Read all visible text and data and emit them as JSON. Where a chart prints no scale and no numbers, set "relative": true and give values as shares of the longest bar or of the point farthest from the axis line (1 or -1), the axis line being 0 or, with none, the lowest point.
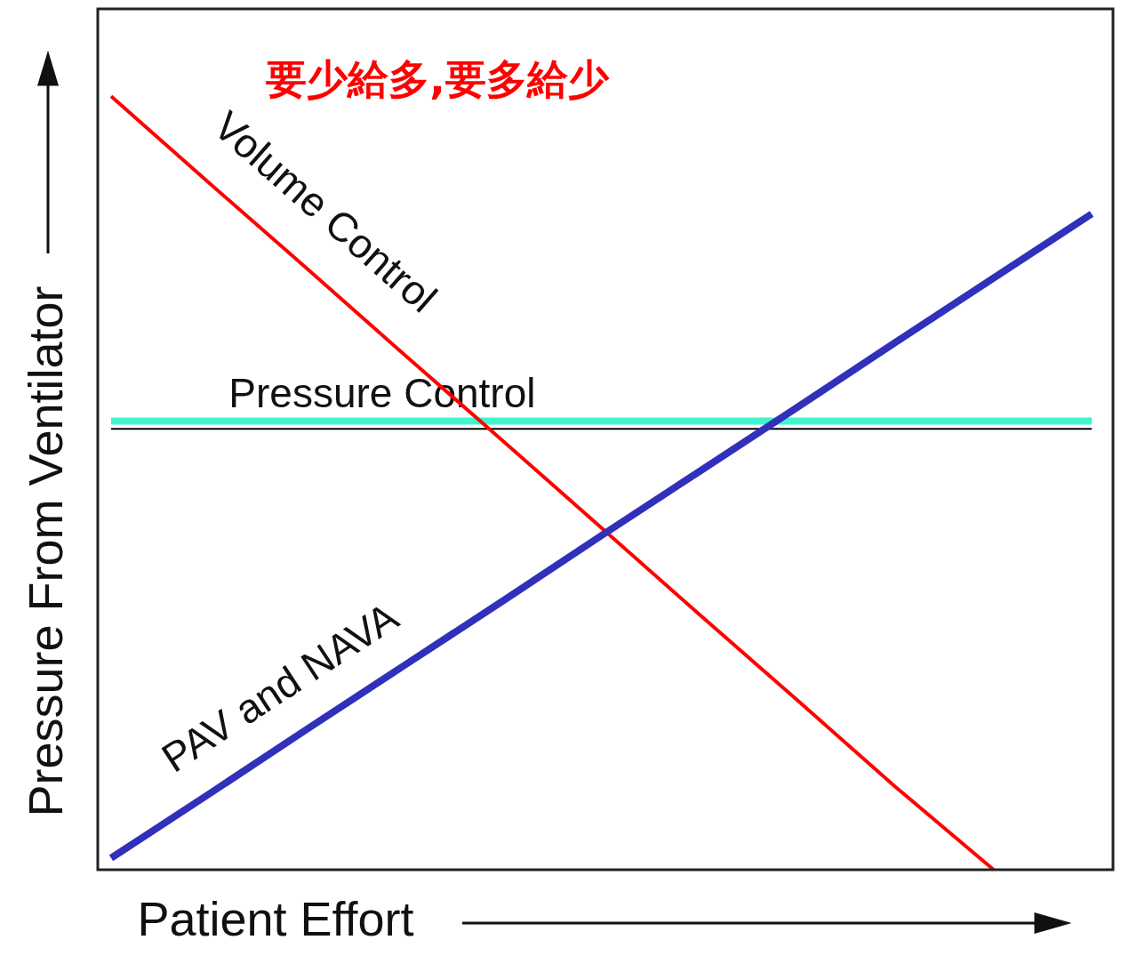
{
  "chart_data": {
    "type": "line",
    "relative": true,
    "title": "要少給多,要多給少",
    "xlabel": "Patient Effort",
    "ylabel": "Pressure From Ventilator",
    "line_style": "solid",
    "categories": [
      null,
      null,
      null,
      null,
      null,
      null,
      null,
      null,
      null,
      null,
      null
    ],
    "series": [
      {
        "color": "#000000",
        "values": [
          0.57,
          0.57,
          0.57,
          0.57,
          0.57,
          0.57,
          0.57,
          0.57,
          0.57,
          0.57,
          0.57
        ]
      },
      {
        "name": "Pressure Control",
        "color": "#40f5cf",
        "values": [
          0.58,
          0.58,
          0.58,
          0.58,
          0.58,
          0.58,
          0.58,
          0.58,
          0.58,
          0.58,
          0.58
        ]
      },
      {
        "name": "Volume Control",
        "color": "#ff0000",
        "values": [
          1,
          0.888,
          0.777,
          0.665,
          0.554,
          0.442,
          0.33,
          0.219,
          0.107,
          0,
          null
        ]
      },
      {
        "name": "PAV and NAVA",
        "color": "#3030bb",
        "values": [
          0.015,
          0.098,
          0.182,
          0.265,
          0.348,
          0.432,
          0.515,
          0.598,
          0.682,
          0.765,
          0.848
        ]
      }
    ]
  }
}
